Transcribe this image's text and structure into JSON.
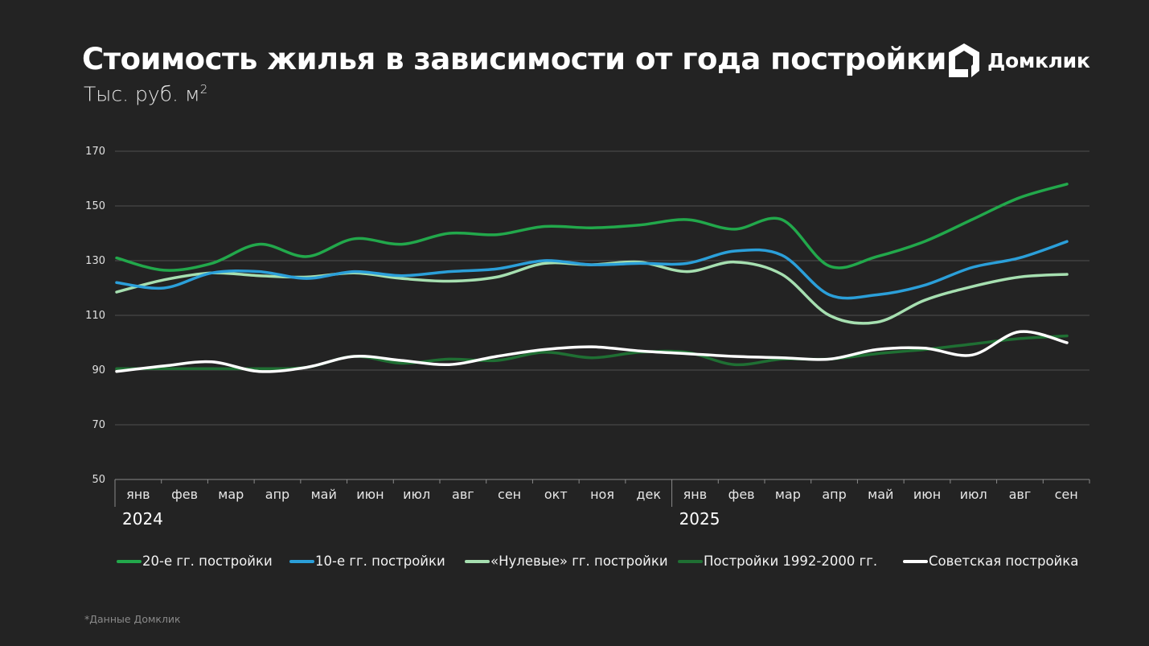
{
  "header": {
    "title": "Стоимость жилья в зависимости от года постройки",
    "subtitle": "Тыс. руб. м",
    "subtitle_sup": "2",
    "logo_text": "Домклик",
    "logo_icon": "house-icon"
  },
  "footnote": "*Данные Домклик",
  "colors": {
    "background": "#232323",
    "grid": "#555555"
  },
  "chart_data": {
    "type": "line",
    "title": "Стоимость жилья в зависимости от года постройки",
    "ylabel": "Тыс. руб. м2",
    "ylim": [
      50,
      170
    ],
    "yticks": [
      "50",
      "70",
      "90",
      "110",
      "130",
      "150",
      "170"
    ],
    "grid": true,
    "legend_position": "bottom",
    "categories": [
      "янв",
      "фев",
      "мар",
      "апр",
      "май",
      "июн",
      "июл",
      "авг",
      "сен",
      "окт",
      "ноя",
      "дек",
      "янв",
      "фев",
      "мар",
      "апр",
      "май",
      "июн",
      "июл",
      "авг",
      "сен"
    ],
    "years": [
      {
        "label": "2024",
        "start_index": 0
      },
      {
        "label": "2025",
        "start_index": 12
      }
    ],
    "series": [
      {
        "name": "20-е гг. постройки",
        "color": "#22a84b",
        "values": [
          131,
          126.5,
          129,
          136,
          131.5,
          138,
          136,
          140,
          139.5,
          142.5,
          142,
          143,
          145,
          141.5,
          145,
          128,
          131.5,
          137,
          145,
          153,
          158
        ]
      },
      {
        "name": "10-е гг. постройки",
        "color": "#2b9fd9",
        "values": [
          122,
          120,
          125.5,
          126,
          123.5,
          126,
          124.5,
          126,
          127,
          130,
          128.5,
          129,
          129,
          133.5,
          132,
          117.5,
          117.5,
          121,
          127.5,
          131,
          137
        ]
      },
      {
        "name": "«Нулевые» гг. постройки",
        "color": "#a6dfb0",
        "values": [
          118.5,
          123,
          125.5,
          124.5,
          124,
          125.5,
          123.5,
          122.5,
          124,
          129,
          128.5,
          129.5,
          126,
          129.5,
          125,
          110,
          107.5,
          115.5,
          120.5,
          124,
          125
        ]
      },
      {
        "name": "Постройки 1992-2000 гг.",
        "color": "#1f6f33",
        "values": [
          90.5,
          90.5,
          90.5,
          90.5,
          91,
          95,
          92.5,
          94,
          93.5,
          96.5,
          94.5,
          96.5,
          96.5,
          92,
          94,
          94,
          96,
          97.5,
          99.5,
          101.5,
          102.5
        ]
      },
      {
        "name": "Советская постройка",
        "color": "#ffffff",
        "values": [
          89.5,
          91.5,
          93,
          89.5,
          91,
          95,
          93.5,
          92,
          95,
          97.5,
          98.5,
          97,
          96,
          95,
          94.5,
          94,
          97.5,
          98,
          95.5,
          104,
          100
        ]
      }
    ]
  }
}
